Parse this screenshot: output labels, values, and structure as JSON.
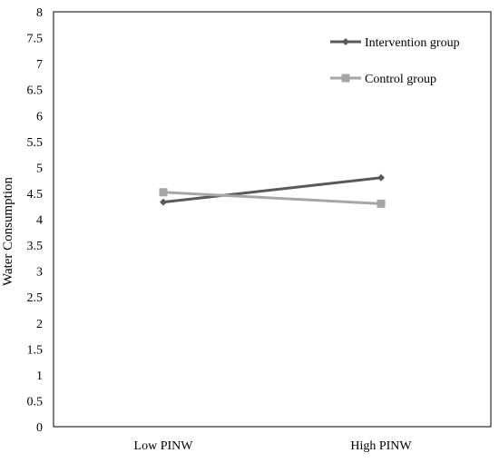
{
  "chart_data": {
    "type": "line",
    "title": "",
    "xlabel": "",
    "ylabel": "Water Consumption",
    "categories": [
      "Low PINW",
      "High PINW"
    ],
    "ylim": [
      0,
      8
    ],
    "yticks": [
      "0",
      "0.5",
      "1",
      "1.5",
      "2",
      "2.5",
      "3",
      "3.5",
      "4",
      "4.5",
      "5",
      "5.5",
      "6",
      "6.5",
      "7",
      "7.5",
      "8"
    ],
    "grid": false,
    "legend_position": "top-right",
    "series": [
      {
        "name": "Intervention group",
        "values": [
          4.33,
          4.8
        ],
        "color": "#595959",
        "marker": "diamond"
      },
      {
        "name": "Control group",
        "values": [
          4.52,
          4.3
        ],
        "color": "#a6a6a6",
        "marker": "square"
      }
    ]
  }
}
